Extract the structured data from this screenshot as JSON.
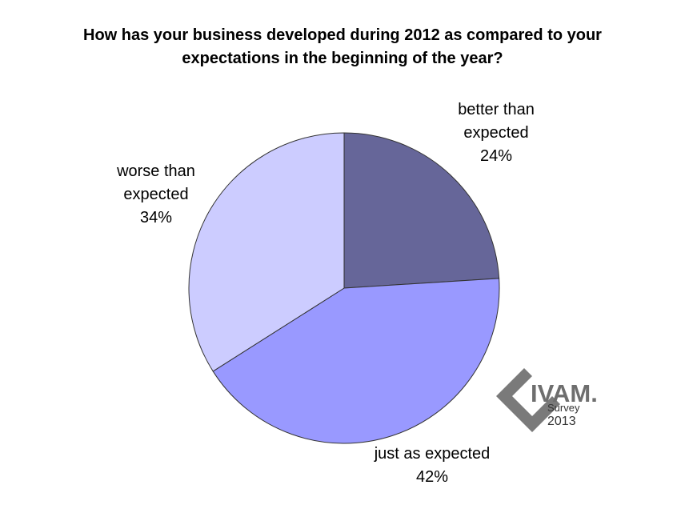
{
  "chart_data": {
    "type": "pie",
    "title": "How has your business developed during 2012 as compared to your expectations in the beginning of the year?",
    "categories": [
      "better than expected",
      "just as expected",
      "worse than expected"
    ],
    "values": [
      24,
      42,
      34
    ],
    "value_labels": [
      "24%",
      "42%",
      "34%"
    ],
    "colors": [
      "#666699",
      "#9999ff",
      "#ccccff"
    ]
  },
  "logo": {
    "brand": "IVAM.",
    "line1": "Survey",
    "line2": "2013"
  }
}
